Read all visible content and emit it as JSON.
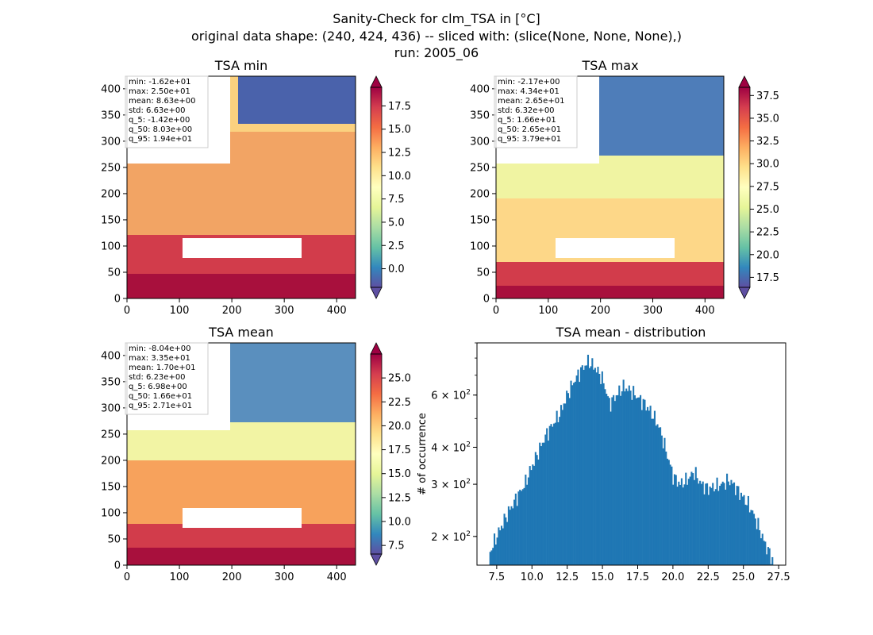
{
  "figure": {
    "title_lines": [
      "Sanity-Check for clm_TSA in [°C]",
      "original data shape: (240, 424, 436) -- sliced with: (slice(None, None, None),)",
      "run: 2005_06"
    ]
  },
  "chart_data": [
    {
      "type": "heatmap",
      "title": "TSA min",
      "xlim": [
        0,
        436
      ],
      "ylim": [
        0,
        424
      ],
      "xticks": [
        0,
        100,
        200,
        300,
        400
      ],
      "yticks": [
        0,
        50,
        100,
        150,
        200,
        250,
        300,
        350,
        400
      ],
      "colormap": "Spectral_r",
      "color_range": [
        -2.0,
        19.5
      ],
      "colorbar_ticks": [
        "0.0",
        "2.5",
        "5.0",
        "7.5",
        "10.0",
        "12.5",
        "15.0",
        "17.5"
      ],
      "colorbar_tick_values": [
        0.0,
        2.5,
        5.0,
        7.5,
        10.0,
        12.5,
        15.0,
        17.5
      ],
      "stats": [
        "min: -1.62e+01",
        "max: 2.50e+01",
        "mean: 8.63e+00",
        "std: 6.63e+00",
        "q_5: -1.42e+00",
        "q_50: 8.03e+00",
        "q_95: 1.94e+01"
      ]
    },
    {
      "type": "heatmap",
      "title": "TSA max",
      "xlim": [
        0,
        436
      ],
      "ylim": [
        0,
        424
      ],
      "xticks": [
        0,
        100,
        200,
        300,
        400
      ],
      "yticks": [
        0,
        50,
        100,
        150,
        200,
        250,
        300,
        350,
        400
      ],
      "colormap": "Spectral_r",
      "color_range": [
        16.4,
        38.4
      ],
      "colorbar_ticks": [
        "17.5",
        "20.0",
        "22.5",
        "25.0",
        "27.5",
        "30.0",
        "32.5",
        "35.0",
        "37.5"
      ],
      "colorbar_tick_values": [
        17.5,
        20.0,
        22.5,
        25.0,
        27.5,
        30.0,
        32.5,
        35.0,
        37.5
      ],
      "stats": [
        "min: -2.17e+00",
        "max: 4.34e+01",
        "mean: 2.65e+01",
        "std: 6.32e+00",
        "q_5: 1.66e+01",
        "q_50: 2.65e+01",
        "q_95: 3.79e+01"
      ]
    },
    {
      "type": "heatmap",
      "title": "TSA mean",
      "xlim": [
        0,
        436
      ],
      "ylim": [
        0,
        424
      ],
      "xticks": [
        0,
        100,
        200,
        300,
        400
      ],
      "yticks": [
        0,
        50,
        100,
        150,
        200,
        250,
        300,
        350,
        400
      ],
      "colormap": "Spectral_r",
      "color_range": [
        6.6,
        27.5
      ],
      "colorbar_ticks": [
        "7.5",
        "10.0",
        "12.5",
        "15.0",
        "17.5",
        "20.0",
        "22.5",
        "25.0"
      ],
      "colorbar_tick_values": [
        7.5,
        10.0,
        12.5,
        15.0,
        17.5,
        20.0,
        22.5,
        25.0
      ],
      "stats": [
        "min: -8.04e+00",
        "max: 3.35e+01",
        "mean: 1.70e+01",
        "std: 6.23e+00",
        "q_5: 6.98e+00",
        "q_50: 1.66e+01",
        "q_95: 2.71e+01"
      ]
    },
    {
      "type": "bar",
      "title": "TSA mean - distribution",
      "ylabel": "# of occurrence",
      "yscale": "log",
      "xlim": [
        6.1,
        28.0
      ],
      "ylim": [
        160,
        900
      ],
      "xticks": [
        "7.5",
        "10.0",
        "12.5",
        "15.0",
        "17.5",
        "20.0",
        "22.5",
        "25.0",
        "27.5"
      ],
      "xtick_values": [
        7.5,
        10.0,
        12.5,
        15.0,
        17.5,
        20.0,
        22.5,
        25.0,
        27.5
      ],
      "yticks_major": [
        {
          "value": 200,
          "base": "2",
          "exp": "2"
        },
        {
          "value": 300,
          "base": "3",
          "exp": "2"
        },
        {
          "value": 400,
          "base": "4",
          "exp": "2"
        },
        {
          "value": 600,
          "base": "6",
          "exp": "2"
        }
      ],
      "color": "#1f77b4",
      "bin_range": [
        6.98,
        27.1
      ],
      "bin_count": 200,
      "profile_x": [
        6.98,
        7.5,
        8.0,
        8.5,
        9.0,
        9.5,
        10.0,
        10.5,
        11.0,
        11.5,
        12.0,
        12.5,
        13.0,
        13.5,
        14.0,
        14.5,
        15.0,
        15.5,
        16.0,
        16.5,
        17.0,
        17.5,
        18.0,
        18.5,
        19.0,
        19.5,
        20.0,
        20.5,
        21.0,
        21.5,
        22.0,
        22.5,
        23.0,
        23.5,
        24.0,
        24.5,
        25.0,
        25.5,
        26.0,
        26.5,
        27.1
      ],
      "profile_y": [
        175,
        200,
        225,
        250,
        275,
        300,
        345,
        390,
        440,
        480,
        520,
        600,
        670,
        730,
        780,
        740,
        680,
        560,
        600,
        640,
        620,
        590,
        560,
        520,
        470,
        390,
        320,
        300,
        310,
        330,
        300,
        290,
        295,
        300,
        310,
        290,
        270,
        250,
        220,
        190,
        165
      ]
    }
  ]
}
